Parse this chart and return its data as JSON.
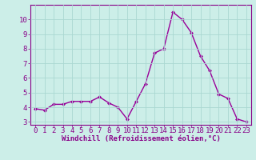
{
  "x": [
    0,
    1,
    2,
    3,
    4,
    5,
    6,
    7,
    8,
    9,
    10,
    11,
    12,
    13,
    14,
    15,
    16,
    17,
    18,
    19,
    20,
    21,
    22,
    23
  ],
  "y": [
    3.9,
    3.8,
    4.2,
    4.2,
    4.4,
    4.4,
    4.4,
    4.7,
    4.3,
    4.0,
    3.2,
    4.4,
    5.6,
    7.7,
    8.0,
    10.5,
    10.0,
    9.1,
    7.5,
    6.5,
    4.9,
    4.6,
    3.2,
    3.0
  ],
  "line_color": "#990099",
  "marker": "D",
  "marker_size": 2.0,
  "background_color": "#cceee8",
  "grid_color": "#aad8d2",
  "xlabel": "Windchill (Refroidissement éolien,°C)",
  "ylim": [
    2.8,
    11.0
  ],
  "xlim": [
    -0.5,
    23.5
  ],
  "yticks": [
    3,
    4,
    5,
    6,
    7,
    8,
    9,
    10
  ],
  "xticks": [
    0,
    1,
    2,
    3,
    4,
    5,
    6,
    7,
    8,
    9,
    10,
    11,
    12,
    13,
    14,
    15,
    16,
    17,
    18,
    19,
    20,
    21,
    22,
    23
  ],
  "xlabel_fontsize": 6.5,
  "tick_fontsize": 6.5,
  "spine_color": "#880088",
  "linewidth": 1.0
}
